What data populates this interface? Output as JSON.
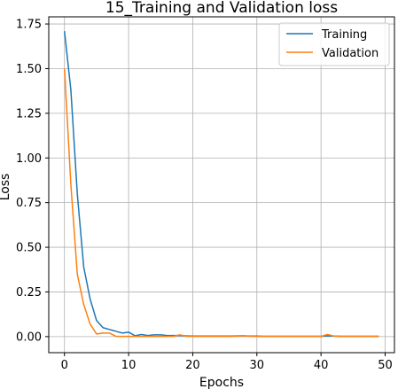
{
  "chart_data": {
    "type": "line",
    "title": "15_Training and Validation loss",
    "xlabel": "Epochs",
    "ylabel": "Loss",
    "xlim": [
      -2.45,
      51.45
    ],
    "ylim": [
      -0.09,
      1.79
    ],
    "xticks": [
      0,
      10,
      20,
      30,
      40,
      50
    ],
    "yticks": [
      0.0,
      0.25,
      0.5,
      0.75,
      1.0,
      1.25,
      1.5,
      1.75
    ],
    "xtick_labels": [
      "0",
      "10",
      "20",
      "30",
      "40",
      "50"
    ],
    "ytick_labels": [
      "0.00",
      "0.25",
      "0.50",
      "0.75",
      "1.00",
      "1.25",
      "1.50",
      "1.75"
    ],
    "grid": true,
    "legend_position": "top-right",
    "x": [
      0,
      1,
      2,
      3,
      4,
      5,
      6,
      7,
      8,
      9,
      10,
      11,
      12,
      13,
      14,
      15,
      16,
      17,
      18,
      19,
      20,
      21,
      22,
      23,
      24,
      25,
      26,
      27,
      28,
      29,
      30,
      31,
      32,
      33,
      34,
      35,
      36,
      37,
      38,
      39,
      40,
      41,
      42,
      43,
      44,
      45,
      46,
      47,
      48,
      49
    ],
    "series": [
      {
        "name": "Training",
        "color": "#1f77b4",
        "values": [
          1.71,
          1.38,
          0.8,
          0.39,
          0.21,
          0.09,
          0.05,
          0.04,
          0.03,
          0.02,
          0.025,
          0.005,
          0.012,
          0.006,
          0.01,
          0.01,
          0.006,
          0.006,
          0.006,
          0.004,
          0.003,
          0.003,
          0.003,
          0.003,
          0.003,
          0.003,
          0.003,
          0.004,
          0.004,
          0.003,
          0.003,
          0.002,
          0.002,
          0.002,
          0.002,
          0.002,
          0.002,
          0.002,
          0.002,
          0.002,
          0.002,
          0.004,
          0.003,
          0.002,
          0.002,
          0.002,
          0.002,
          0.002,
          0.002,
          0.002
        ]
      },
      {
        "name": "Validation",
        "color": "#ff7f0e",
        "values": [
          1.5,
          0.85,
          0.35,
          0.18,
          0.07,
          0.015,
          0.02,
          0.02,
          0.002,
          0.001,
          0.001,
          0.001,
          0.002,
          0.001,
          0.001,
          0.001,
          0.001,
          0.002,
          0.01,
          0.002,
          0.001,
          0.001,
          0.001,
          0.001,
          0.001,
          0.001,
          0.001,
          0.003,
          0.004,
          0.002,
          0.001,
          0.001,
          0.001,
          0.001,
          0.001,
          0.001,
          0.001,
          0.001,
          0.001,
          0.001,
          0.001,
          0.012,
          0.003,
          0.001,
          0.001,
          0.001,
          0.001,
          0.001,
          0.001,
          0.001
        ]
      }
    ]
  }
}
